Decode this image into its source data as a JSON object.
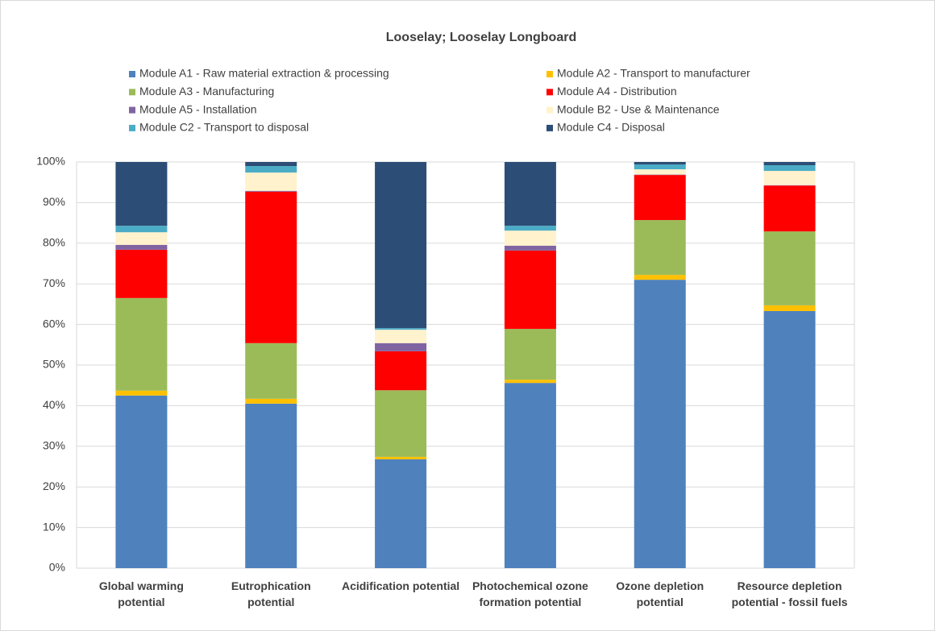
{
  "chart_data": {
    "type": "bar",
    "stacked": true,
    "title": "Looselay; Looselay Longboard",
    "categories": [
      "Global warming potential",
      "Eutrophication potential",
      "Acidification potential",
      "Photochemical ozone formation potential",
      "Ozone depletion potential",
      "Resource depletion potential - fossil fuels"
    ],
    "series": [
      {
        "name": "Module A1 - Raw material extraction & processing",
        "color": "#4f81bd",
        "values": [
          42.5,
          40.5,
          26.8,
          45.6,
          71.0,
          63.3
        ]
      },
      {
        "name": "Module A2 - Transport to manufacturer",
        "color": "#ffc000",
        "values": [
          1.2,
          1.2,
          0.6,
          0.8,
          1.2,
          1.4
        ]
      },
      {
        "name": "Module A3 - Manufacturing",
        "color": "#9bbb59",
        "values": [
          22.8,
          13.7,
          16.4,
          12.5,
          13.5,
          18.2
        ]
      },
      {
        "name": "Module A4 - Distribution",
        "color": "#ff0000",
        "values": [
          11.9,
          37.3,
          9.6,
          19.3,
          11.1,
          11.3
        ]
      },
      {
        "name": "Module A5 - Installation",
        "color": "#8064a2",
        "values": [
          1.2,
          0.2,
          2.0,
          1.2,
          0.1,
          0.1
        ]
      },
      {
        "name": "Module B2 - Use & Maintenance",
        "color": "#fff2cc",
        "values": [
          3.1,
          4.5,
          3.3,
          3.7,
          1.3,
          3.5
        ]
      },
      {
        "name": "Module C2 - Transport to disposal",
        "color": "#4bacc6",
        "values": [
          1.6,
          1.6,
          0.4,
          1.2,
          1.2,
          1.4
        ]
      },
      {
        "name": "Module C4 - Disposal",
        "color": "#2c4d75",
        "values": [
          15.7,
          1.0,
          40.9,
          15.7,
          0.6,
          0.8
        ]
      }
    ],
    "ylim": [
      0,
      100
    ],
    "yticks": [
      {
        "value": 0,
        "label": "0%"
      },
      {
        "value": 10,
        "label": "10%"
      },
      {
        "value": 20,
        "label": "20%"
      },
      {
        "value": 30,
        "label": "30%"
      },
      {
        "value": 40,
        "label": "40%"
      },
      {
        "value": 50,
        "label": "50%"
      },
      {
        "value": 60,
        "label": "60%"
      },
      {
        "value": 70,
        "label": "70%"
      },
      {
        "value": 80,
        "label": "80%"
      },
      {
        "value": 90,
        "label": "90%"
      },
      {
        "value": 100,
        "label": "100%"
      }
    ],
    "grid": true,
    "legend": "top"
  }
}
